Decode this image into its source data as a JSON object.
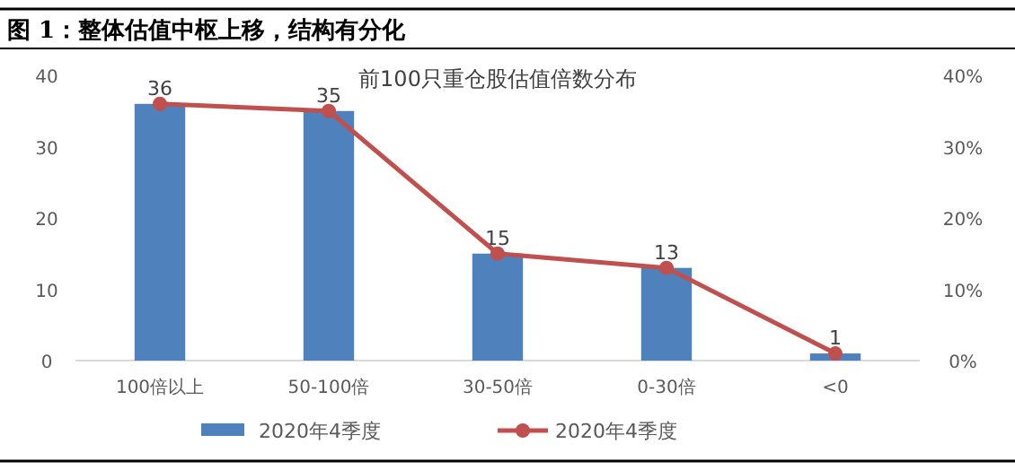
{
  "chart_data": {
    "type": "bar",
    "title": "图 1：整体估值中枢上移，结构有分化",
    "subtitle": "前100只重仓股估值倍数分布",
    "categories": [
      "100倍以上",
      "50-100倍",
      "30-50倍",
      "0-30倍",
      "<0"
    ],
    "series": [
      {
        "name": "2020年4季度",
        "color": "#4f81bd",
        "values": [
          36,
          35,
          15,
          13,
          1
        ],
        "value_labels": [
          "36",
          "35",
          "15",
          "13",
          "1"
        ]
      },
      {
        "name": "2020年4季度",
        "type": "line",
        "axis": "y2",
        "color": "#c0504d",
        "values": [
          36,
          35,
          15,
          13,
          1
        ],
        "marker": "circle"
      }
    ],
    "ylim": [
      0,
      40
    ],
    "yticks": [
      0,
      10,
      20,
      30,
      40
    ],
    "y2lim": [
      0,
      40
    ],
    "y2ticks": [
      {
        "value": 0,
        "label": "0%"
      },
      {
        "value": 10,
        "label": "10%"
      },
      {
        "value": 20,
        "label": "20%"
      },
      {
        "value": 30,
        "label": "30%"
      },
      {
        "value": 40,
        "label": "40%"
      }
    ],
    "legend": "bottom"
  }
}
